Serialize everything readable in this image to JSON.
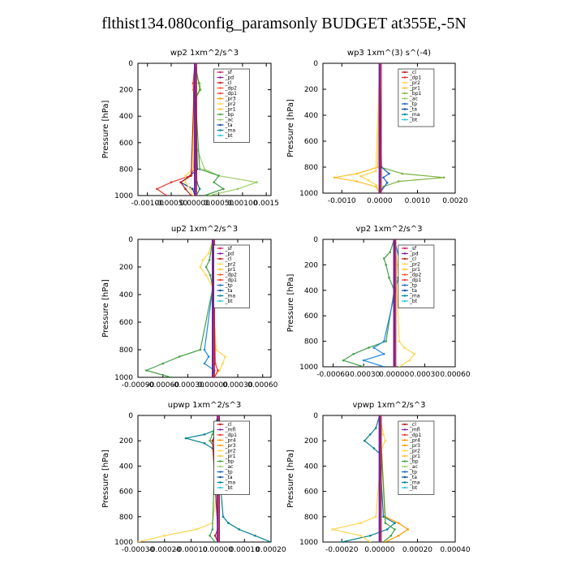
{
  "title": "flthist134.080config_paramsonly  BUDGET at355E,-5N",
  "colors": {
    "sf": "#d81b60",
    "pd": "#7b1fa2",
    "cl": "#b71c1c",
    "dp1": "#e53935",
    "dp2": "#ff5722",
    "pr1": "#fbc02d",
    "pr2": "#ffd54f",
    "pr3": "#ff9800",
    "bp": "#43a047",
    "bp1": "#7cb342",
    "ac": "#9ccc65",
    "tp": "#1565c0",
    "ta": "#0d47a1",
    "ma": "#00838f",
    "bt": "#26c6da",
    "mfl": "#8e24aa",
    "ta2": "#1e88e5",
    "zero": "#000000"
  },
  "chart_data": [
    {
      "type": "line",
      "title": "wp2   1xm^2/s^3",
      "ylabel": "Pressure [hPa]",
      "ylim": [
        1000,
        0
      ],
      "yticks": [
        0,
        200,
        400,
        600,
        800,
        1000
      ],
      "xlim": [
        -0.0012,
        0.0016
      ],
      "xticks": [
        -0.001,
        -0.0005,
        0.0,
        0.0005,
        0.001,
        0.0015
      ],
      "xticklabels": [
        "-0.00100",
        "-0.00050",
        "0.00000",
        "0.00050",
        "0.00100",
        "0.0015"
      ],
      "legend": [
        "_sf",
        "_pd",
        "_cl",
        "_dp2",
        "_dp1",
        "_pr3",
        "_pr2",
        "_pr1",
        "_bp",
        "_ac",
        "_ta",
        "_ma",
        "_bt"
      ],
      "legend_colors": [
        "sf",
        "pd",
        "cl",
        "dp2",
        "dp1",
        "pr3",
        "pr2",
        "pr1",
        "bp",
        "ac",
        "ta",
        "ma",
        "bt"
      ],
      "series": [
        {
          "color": "ac",
          "p": [
            0,
            100,
            150,
            200,
            260,
            600,
            800,
            850,
            900,
            950,
            1000
          ],
          "x": [
            0,
            3e-05,
            0.0001,
            0.00012,
            2e-05,
            0,
            0.0002,
            0.0005,
            0.0013,
            0.0009,
            0.0003
          ]
        },
        {
          "color": "bp",
          "p": [
            0,
            150,
            200,
            260,
            800,
            850,
            900,
            950,
            1000
          ],
          "x": [
            0,
            8e-05,
            0.0001,
            1e-05,
            0.0001,
            0.0005,
            0.0004,
            0.0006,
            0.0002
          ]
        },
        {
          "color": "ta",
          "p": [
            0,
            800,
            850,
            900,
            950,
            1000
          ],
          "x": [
            0,
            5e-05,
            -0.0001,
            -0.0003,
            -5e-05,
            0
          ]
        },
        {
          "color": "dp1",
          "p": [
            0,
            150,
            200,
            800,
            850,
            900,
            950,
            1000
          ],
          "x": [
            0,
            -4e-05,
            -3e-05,
            -2e-05,
            -0.0001,
            -0.0005,
            -0.0008,
            -0.0006
          ]
        },
        {
          "color": "pr2",
          "p": [
            0,
            800,
            850,
            900,
            950,
            1000
          ],
          "x": [
            0,
            -4e-05,
            -0.0002,
            -0.0002,
            -0.0001,
            -5e-05
          ]
        },
        {
          "color": "cl",
          "p": [
            0,
            850,
            900,
            950,
            1000
          ],
          "x": [
            0,
            -8e-05,
            -0.0003,
            -0.0002,
            -8e-05
          ]
        },
        {
          "color": "ma",
          "p": [
            0,
            900,
            950,
            1000
          ],
          "x": [
            0,
            4e-05,
            0.0001,
            3e-05
          ]
        },
        {
          "color": "pd",
          "p": [
            0,
            1000
          ],
          "x": [
            0,
            0
          ]
        }
      ]
    },
    {
      "type": "line",
      "title": "wp3   1xm^(3) s^(-4)",
      "ylabel": "Pressure [hPa]",
      "ylim": [
        1000,
        0
      ],
      "yticks": [
        0,
        200,
        400,
        600,
        800,
        1000
      ],
      "xlim": [
        -0.0015,
        0.002
      ],
      "xticks": [
        -0.001,
        0.0,
        0.001,
        0.002
      ],
      "xticklabels": [
        "-0.0010",
        "0.0000",
        "0.0010",
        "0.0020"
      ],
      "legend": [
        "_cl",
        "_dp1",
        "_pr2",
        "_pr1",
        "_bp1",
        "_ac",
        "_tp",
        "_ta",
        "_ma",
        "_bt"
      ],
      "legend_colors": [
        "cl",
        "dp1",
        "pr2",
        "pr1",
        "bp1",
        "ac",
        "tp",
        "ta",
        "ma",
        "bt"
      ],
      "series": [
        {
          "color": "bp1",
          "p": [
            0,
            800,
            850,
            880,
            910,
            950,
            1000
          ],
          "x": [
            0,
            2e-05,
            0.0006,
            0.0017,
            0.0005,
            0.0001,
            0
          ]
        },
        {
          "color": "pr1",
          "p": [
            0,
            800,
            850,
            880,
            910,
            950,
            1000
          ],
          "x": [
            0,
            -5e-05,
            -0.0006,
            -0.0012,
            -0.0006,
            -0.0001,
            0
          ]
        },
        {
          "color": "pr2",
          "p": [
            0,
            830,
            870,
            900,
            940,
            1000
          ],
          "x": [
            0,
            -0.0001,
            -0.0005,
            -0.0003,
            -8e-05,
            0
          ]
        },
        {
          "color": "tp",
          "p": [
            0,
            800,
            850,
            880,
            920,
            1000
          ],
          "x": [
            0,
            5e-05,
            0.00025,
            0.0001,
            0.0002,
            0
          ]
        },
        {
          "color": "cl",
          "p": [
            0,
            1000
          ],
          "x": [
            0,
            0
          ]
        }
      ]
    },
    {
      "type": "line",
      "title": "up2   1xm^2/s^3",
      "ylabel": "Pressure [hPa]",
      "ylim": [
        1000,
        0
      ],
      "yticks": [
        0,
        200,
        400,
        600,
        800,
        1000
      ],
      "xlim": [
        -0.0009,
        0.0007
      ],
      "xticks": [
        -0.0009,
        -0.0006,
        -0.0003,
        0.0,
        0.0003,
        0.0006
      ],
      "xticklabels": [
        "-0.00090",
        "-0.00060",
        "-0.00030",
        "0.00000",
        "0.00030",
        "0.00060"
      ],
      "legend": [
        "_sf",
        "_pd",
        "_cl",
        "_pr2",
        "_pr1",
        "_dp2",
        "_dp1",
        "_tp",
        "_ta",
        "_ma",
        "_bt"
      ],
      "legend_colors": [
        "sf",
        "pd",
        "cl",
        "pr2",
        "pr1",
        "dp2",
        "dp1",
        "tp",
        "ta",
        "ma",
        "bt"
      ],
      "series": [
        {
          "color": "ta2",
          "p": [
            0,
            100,
            150,
            200,
            260,
            350,
            800,
            850,
            900,
            950,
            1000
          ],
          "x": [
            0,
            6e-05,
            0.0001,
            0.0002,
            5e-05,
            0,
            -0.0001,
            -5e-05,
            -0.0001,
            2e-05,
            0
          ]
        },
        {
          "color": "pr2",
          "p": [
            0,
            100,
            150,
            200,
            260,
            350,
            800,
            850,
            900,
            950,
            1000
          ],
          "x": [
            0,
            -5e-05,
            -0.00012,
            -0.00015,
            -8e-05,
            0,
            4e-05,
            0.00015,
            0.00012,
            8e-05,
            2e-05
          ]
        },
        {
          "color": "bp",
          "p": [
            0,
            150,
            200,
            260,
            350,
            800,
            850,
            900,
            950,
            1000
          ],
          "x": [
            0,
            -4e-05,
            -8e-05,
            -3e-05,
            0,
            -0.00015,
            -0.0004,
            -0.0006,
            -0.0008,
            -0.0005
          ]
        },
        {
          "color": "dp1",
          "p": [
            0,
            900,
            950,
            1000
          ],
          "x": [
            0,
            3e-05,
            6e-05,
            2e-05
          ]
        },
        {
          "color": "sf",
          "p": [
            0,
            1000
          ],
          "x": [
            0,
            0
          ]
        }
      ]
    },
    {
      "type": "line",
      "title": "vp2   1xm^2/s^3",
      "ylabel": "Pressure [hPa]",
      "ylim": [
        1000,
        0
      ],
      "yticks": [
        0,
        200,
        400,
        600,
        800,
        1000
      ],
      "xlim": [
        -0.0007,
        0.0006
      ],
      "xticks": [
        -0.0006,
        -0.0003,
        0.0,
        0.0003,
        0.0006
      ],
      "xticklabels": [
        "-0.00060",
        "-0.00030",
        "0.00000",
        "0.00030",
        "0.00060"
      ],
      "legend": [
        "_sf",
        "_pd",
        "_cl",
        "_pr2",
        "_pr1",
        "_dp2",
        "_dp1",
        "_tp",
        "_ta",
        "_ma",
        "_bt"
      ],
      "legend_colors": [
        "sf",
        "pd",
        "cl",
        "pr2",
        "pr1",
        "dp2",
        "dp1",
        "tp",
        "ta",
        "ma",
        "bt"
      ],
      "series": [
        {
          "color": "bp",
          "p": [
            0,
            100,
            150,
            200,
            300,
            400,
            800,
            850,
            900,
            950,
            1000
          ],
          "x": [
            0,
            -4e-05,
            -0.0001,
            -8e-05,
            -5e-05,
            0,
            -8e-05,
            -0.00025,
            -0.0004,
            -0.0005,
            -0.0003
          ]
        },
        {
          "color": "ta2",
          "p": [
            0,
            150,
            200,
            300,
            800,
            850,
            900,
            950,
            1000
          ],
          "x": [
            0,
            5e-05,
            8e-05,
            4e-05,
            -0.0001,
            -0.0002,
            -0.0001,
            -0.0003,
            -0.0001
          ]
        },
        {
          "color": "pr2",
          "p": [
            0,
            200,
            300,
            800,
            850,
            900,
            950,
            1000
          ],
          "x": [
            0,
            3e-05,
            2e-05,
            5e-05,
            0.0001,
            0.0002,
            0.00015,
            5e-05
          ]
        },
        {
          "color": "sf",
          "p": [
            0,
            1000
          ],
          "x": [
            0,
            0
          ]
        }
      ]
    },
    {
      "type": "line",
      "title": "upwp   1xm^2/s^3",
      "ylabel": "Pressure [hPa]",
      "ylim": [
        1000,
        0
      ],
      "yticks": [
        0,
        200,
        400,
        600,
        800,
        1000
      ],
      "xlim": [
        -0.0003,
        0.0002
      ],
      "xticks": [
        -0.0003,
        -0.0002,
        -0.0001,
        0.0,
        0.0001,
        0.0002
      ],
      "xticklabels": [
        "-0.00030",
        "-0.00020",
        "-0.00010",
        "0.00000",
        "0.00010",
        "0.00020"
      ],
      "legend": [
        "_cl",
        "_mfl",
        "_dp1",
        "_pr4",
        "_pr3",
        "_pr2",
        "_pr1",
        "_bp",
        "_ac",
        "_tp",
        "_ta",
        "_ma",
        "_bt"
      ],
      "legend_colors": [
        "cl",
        "mfl",
        "dp1",
        "pr3",
        "pr3",
        "pr2",
        "pr1",
        "bp",
        "ac",
        "tp",
        "ta",
        "ma",
        "bt"
      ],
      "series": [
        {
          "color": "ma",
          "p": [
            0,
            100,
            150,
            180,
            220,
            260,
            300,
            800,
            850,
            900,
            950,
            1000
          ],
          "x": [
            0,
            1e-05,
            -5e-05,
            -0.00012,
            -5e-05,
            -2e-05,
            0,
            2e-05,
            4e-05,
            8e-05,
            0.00014,
            0.0002
          ]
        },
        {
          "color": "pr2",
          "p": [
            0,
            100,
            150,
            200,
            260,
            850,
            900,
            950,
            1000
          ],
          "x": [
            0,
            2e-05,
            4e-05,
            5e-05,
            2e-05,
            -2e-05,
            -8e-05,
            -0.0002,
            -0.0003
          ]
        },
        {
          "color": "bp",
          "p": [
            0,
            150,
            200,
            260,
            900,
            950,
            1000
          ],
          "x": [
            0,
            -2e-05,
            -3e-05,
            -1e-05,
            -2e-05,
            -3e-05,
            -1e-05
          ]
        },
        {
          "color": "cl",
          "p": [
            0,
            150,
            200,
            900,
            950,
            1000
          ],
          "x": [
            0,
            -1e-05,
            -2e-05,
            0,
            -1e-05,
            0
          ]
        },
        {
          "color": "mfl",
          "p": [
            0,
            1000
          ],
          "x": [
            0,
            0
          ]
        }
      ]
    },
    {
      "type": "line",
      "title": "vpwp   1xm^2/s^3",
      "ylabel": "Pressure [hPa]",
      "ylim": [
        1000,
        0
      ],
      "yticks": [
        0,
        200,
        400,
        600,
        800,
        1000
      ],
      "xlim": [
        -0.0003,
        0.0004
      ],
      "xticks": [
        -0.0002,
        0.0,
        0.0002,
        0.0004
      ],
      "xticklabels": [
        "-0.00020",
        "0.00000",
        "0.00020",
        "0.00040"
      ],
      "legend": [
        "_cl",
        "_mfl",
        "_dp1",
        "_pr4",
        "_pr3",
        "_pr2",
        "_pr1",
        "_bp",
        "_ac",
        "_tp",
        "_ta",
        "_ma",
        "_bt"
      ],
      "legend_colors": [
        "cl",
        "mfl",
        "dp1",
        "pr3",
        "pr3",
        "pr2",
        "pr1",
        "bp",
        "ac",
        "tp",
        "ta",
        "ma",
        "bt"
      ],
      "series": [
        {
          "color": "ma",
          "p": [
            0,
            100,
            150,
            200,
            260,
            300,
            800,
            850,
            900,
            950,
            1000
          ],
          "x": [
            0,
            -2e-05,
            -5e-05,
            -8e-05,
            -3e-05,
            0,
            2e-05,
            8e-05,
            4e-05,
            -5e-05,
            -0.0002
          ]
        },
        {
          "color": "pr2",
          "p": [
            0,
            150,
            200,
            260,
            800,
            850,
            900,
            950,
            1000
          ],
          "x": [
            0,
            2e-05,
            3e-05,
            1e-05,
            -2e-05,
            -0.0001,
            -0.00025,
            -0.0001,
            -5e-05
          ]
        },
        {
          "color": "pr3",
          "p": [
            0,
            800,
            850,
            900,
            950,
            1000
          ],
          "x": [
            0,
            3e-05,
            0.0001,
            0.00015,
            0.0001,
            3e-05
          ]
        },
        {
          "color": "bp",
          "p": [
            0,
            850,
            900,
            950,
            1000
          ],
          "x": [
            0,
            3e-05,
            8e-05,
            6e-05,
            2e-05
          ]
        },
        {
          "color": "mfl",
          "p": [
            0,
            1000
          ],
          "x": [
            0,
            0
          ]
        }
      ]
    }
  ]
}
